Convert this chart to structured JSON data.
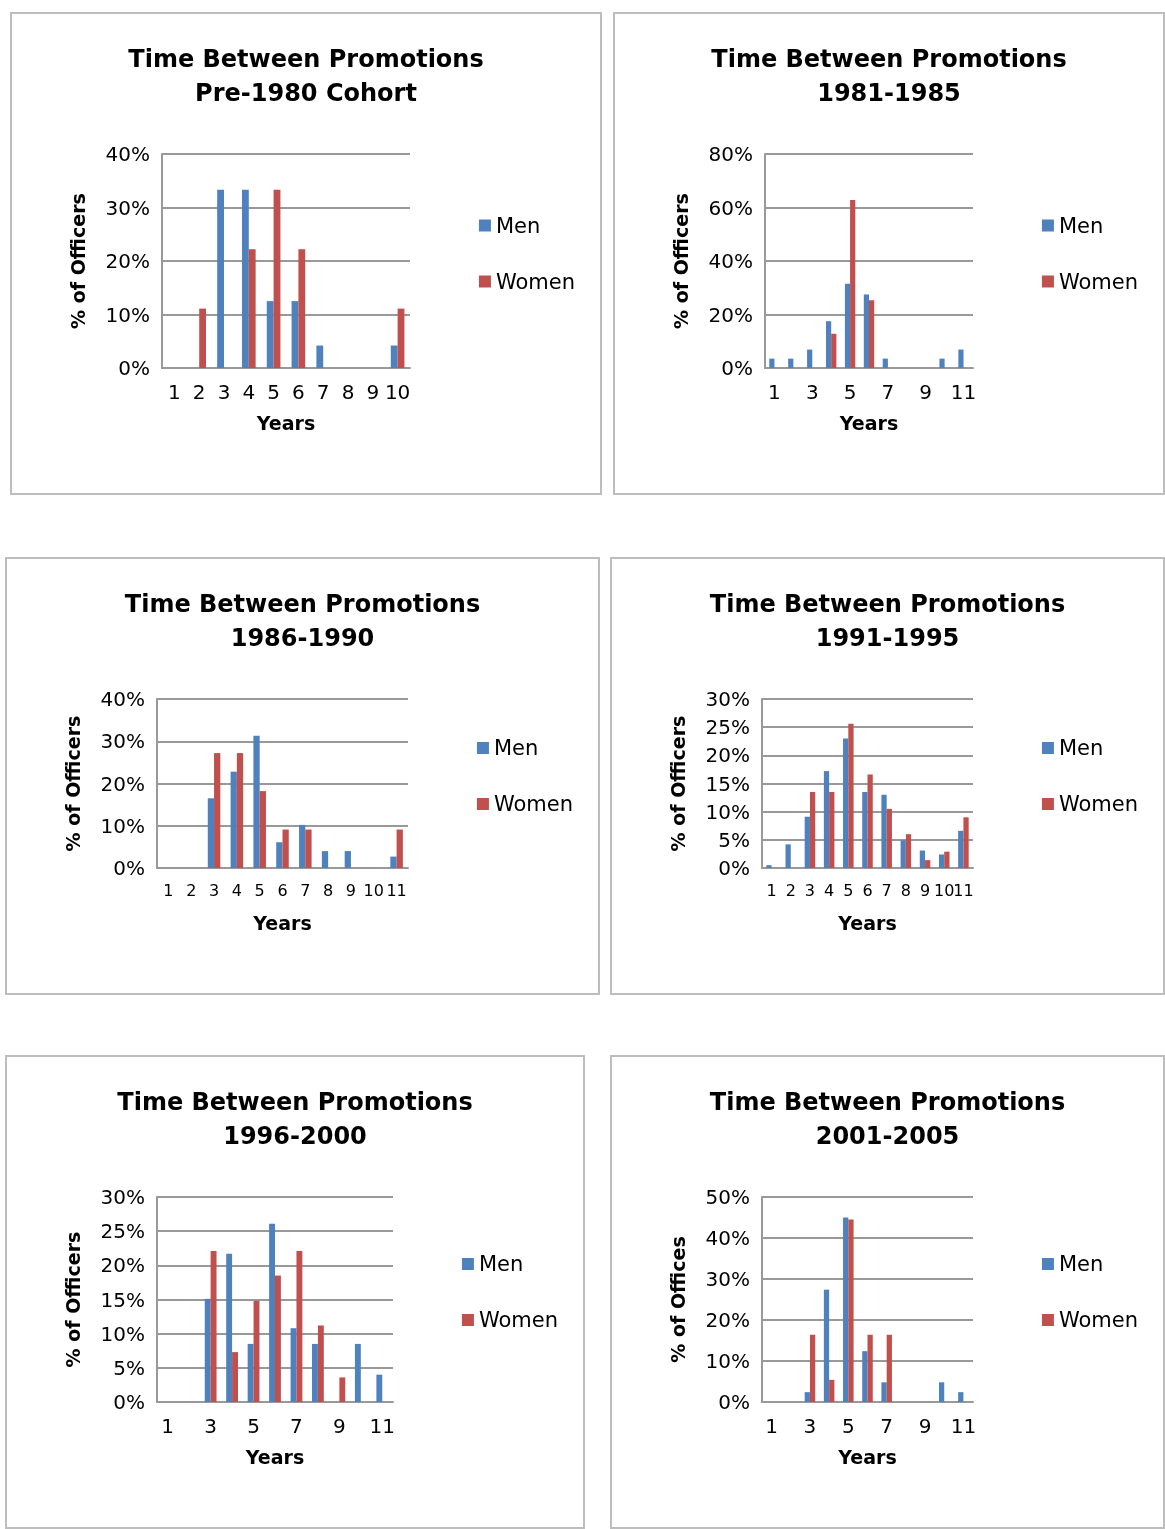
{
  "chart_data": [
    {
      "type": "bar",
      "title": "Time Between Promotions",
      "subtitle": "Pre-1980 Cohort",
      "xlabel": "Years",
      "ylabel": "% of Officers",
      "categories": [
        "1",
        "2",
        "3",
        "4",
        "5",
        "6",
        "7",
        "8",
        "9",
        "10"
      ],
      "series": [
        {
          "name": "Men",
          "color": "#4f81bd",
          "values": [
            0,
            0,
            33.3,
            33.3,
            12.5,
            12.5,
            4.2,
            0,
            0,
            4.2
          ]
        },
        {
          "name": "Women",
          "color": "#c0504d",
          "values": [
            0,
            11.1,
            0,
            22.2,
            33.3,
            22.2,
            0,
            0,
            0,
            11.1
          ]
        }
      ],
      "ylim": [
        0,
        40
      ],
      "yticks": [
        {
          "value": 0,
          "label": "0%"
        },
        {
          "value": 10,
          "label": "10%"
        },
        {
          "value": 20,
          "label": "20%"
        },
        {
          "value": 30,
          "label": "30%"
        },
        {
          "value": 40,
          "label": "40%"
        }
      ],
      "grid": "y",
      "legend": "right"
    },
    {
      "type": "bar",
      "title": "Time Between Promotions",
      "subtitle": "1981-1985",
      "xlabel": "Years",
      "ylabel": "% of Officers",
      "categories": [
        "1",
        null,
        "3",
        null,
        "5",
        null,
        "7",
        null,
        "9",
        null,
        "11"
      ],
      "series": [
        {
          "name": "Men",
          "color": "#4f81bd",
          "values": [
            3.5,
            3.5,
            6.9,
            17.5,
            31.5,
            27.5,
            3.5,
            0,
            0,
            3.5,
            6.9
          ]
        },
        {
          "name": "Women",
          "color": "#c0504d",
          "values": [
            0,
            0,
            0,
            12.8,
            62.8,
            25.3,
            0,
            0,
            0,
            0,
            0
          ]
        }
      ],
      "ylim": [
        0,
        80
      ],
      "yticks": [
        {
          "value": 0,
          "label": "0%"
        },
        {
          "value": 20,
          "label": "20%"
        },
        {
          "value": 40,
          "label": "40%"
        },
        {
          "value": 60,
          "label": "60%"
        },
        {
          "value": 80,
          "label": "80%"
        }
      ],
      "grid": "y",
      "legend": "right"
    },
    {
      "type": "bar",
      "title": "Time Between Promotions",
      "subtitle": "1986-1990",
      "xlabel": "Years",
      "ylabel": "% of Officers",
      "categories": [
        "1",
        "2",
        "3",
        "4",
        "5",
        "6",
        "7",
        "8",
        "9",
        "10",
        "11"
      ],
      "series": [
        {
          "name": "Men",
          "color": "#4f81bd",
          "values": [
            0,
            0,
            16.5,
            22.8,
            31.3,
            6.1,
            10.2,
            4.0,
            4.0,
            0,
            2.7
          ]
        },
        {
          "name": "Women",
          "color": "#c0504d",
          "values": [
            0,
            0,
            27.2,
            27.2,
            18.2,
            9.1,
            9.1,
            0,
            0,
            0,
            9.1
          ]
        }
      ],
      "ylim": [
        0,
        40
      ],
      "yticks": [
        {
          "value": 0,
          "label": "0%"
        },
        {
          "value": 10,
          "label": "10%"
        },
        {
          "value": 20,
          "label": "20%"
        },
        {
          "value": 30,
          "label": "30%"
        },
        {
          "value": 40,
          "label": "40%"
        }
      ],
      "grid": "y",
      "legend": "right"
    },
    {
      "type": "bar",
      "title": "Time Between Promotions",
      "subtitle": "1991-1995",
      "xlabel": "Years",
      "ylabel": "% of Officers",
      "categories": [
        "1",
        "2",
        "3",
        "4",
        "5",
        "6",
        "7",
        "8",
        "9",
        "10",
        "11"
      ],
      "series": [
        {
          "name": "Men",
          "color": "#4f81bd",
          "values": [
            0.5,
            4.2,
            9.1,
            17.2,
            23.0,
            13.5,
            13.0,
            4.9,
            3.1,
            2.4,
            6.6
          ]
        },
        {
          "name": "Women",
          "color": "#c0504d",
          "values": [
            0,
            0,
            13.5,
            13.5,
            25.6,
            16.6,
            10.5,
            6.0,
            1.4,
            2.9,
            9.0
          ]
        }
      ],
      "ylim": [
        0,
        30
      ],
      "yticks": [
        {
          "value": 0,
          "label": "0%"
        },
        {
          "value": 5,
          "label": "5%"
        },
        {
          "value": 10,
          "label": "10%"
        },
        {
          "value": 15,
          "label": "15%"
        },
        {
          "value": 20,
          "label": "20%"
        },
        {
          "value": 25,
          "label": "25%"
        },
        {
          "value": 30,
          "label": "30%"
        }
      ],
      "grid": "y",
      "legend": "right"
    },
    {
      "type": "bar",
      "title": "Time Between Promotions",
      "subtitle": "1996-2000",
      "xlabel": "Years",
      "ylabel": "% of Officers",
      "categories": [
        "1",
        null,
        "3",
        null,
        "5",
        null,
        "7",
        null,
        "9",
        null,
        "11"
      ],
      "series": [
        {
          "name": "Men",
          "color": "#4f81bd",
          "values": [
            0,
            0,
            15.1,
            21.7,
            8.5,
            26.1,
            10.8,
            8.5,
            0,
            8.5,
            4.0
          ]
        },
        {
          "name": "Women",
          "color": "#c0504d",
          "values": [
            0,
            0,
            22.1,
            7.3,
            14.8,
            18.5,
            22.1,
            11.2,
            3.6,
            0,
            0
          ]
        }
      ],
      "ylim": [
        0,
        30
      ],
      "yticks": [
        {
          "value": 0,
          "label": "0%"
        },
        {
          "value": 5,
          "label": "5%"
        },
        {
          "value": 10,
          "label": "10%"
        },
        {
          "value": 15,
          "label": "15%"
        },
        {
          "value": 20,
          "label": "20%"
        },
        {
          "value": 25,
          "label": "25%"
        },
        {
          "value": 30,
          "label": "30%"
        }
      ],
      "grid": "y",
      "legend": "right"
    },
    {
      "type": "bar",
      "title": "Time Between Promotions",
      "subtitle": "2001-2005",
      "xlabel": "Years",
      "ylabel": "% of Offices",
      "categories": [
        "1",
        null,
        "3",
        null,
        "5",
        null,
        "7",
        null,
        "9",
        null,
        "11"
      ],
      "series": [
        {
          "name": "Men",
          "color": "#4f81bd",
          "values": [
            0,
            0,
            2.4,
            27.4,
            45.0,
            12.4,
            4.8,
            0,
            0,
            4.8,
            2.4
          ]
        },
        {
          "name": "Women",
          "color": "#c0504d",
          "values": [
            0,
            0,
            16.4,
            5.4,
            44.5,
            16.4,
            16.4,
            0,
            0,
            0,
            0
          ]
        }
      ],
      "ylim": [
        0,
        50
      ],
      "yticks": [
        {
          "value": 0,
          "label": "0%"
        },
        {
          "value": 10,
          "label": "10%"
        },
        {
          "value": 20,
          "label": "20%"
        },
        {
          "value": 30,
          "label": "30%"
        },
        {
          "value": 40,
          "label": "40%"
        },
        {
          "value": 50,
          "label": "50%"
        }
      ],
      "grid": "y",
      "legend": "right"
    }
  ]
}
